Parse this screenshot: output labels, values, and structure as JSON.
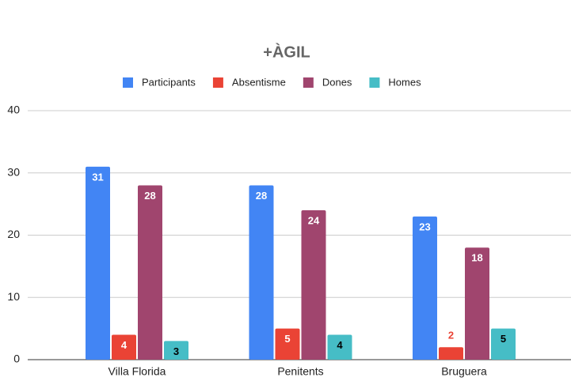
{
  "chart_data": {
    "type": "bar",
    "title": "+ÀGIL",
    "categories": [
      "Villa Florida",
      "Penitents",
      "Bruguera"
    ],
    "series": [
      {
        "name": "Participants",
        "color": "#4285f4",
        "label_color": "#ffffff",
        "values": [
          31,
          28,
          23
        ]
      },
      {
        "name": "Absentisme",
        "color": "#ea4335",
        "label_color": "#ffffff",
        "values": [
          4,
          5,
          2
        ]
      },
      {
        "name": "Dones",
        "color": "#a0456e",
        "label_color": "#ffffff",
        "values": [
          28,
          24,
          18
        ]
      },
      {
        "name": "Homes",
        "color": "#46bdc6",
        "label_color": "#000000",
        "values": [
          3,
          4,
          5
        ]
      }
    ],
    "ylim": [
      0,
      40
    ],
    "yticks": [
      0,
      10,
      20,
      30,
      40
    ],
    "grid": true,
    "legend": "top"
  }
}
